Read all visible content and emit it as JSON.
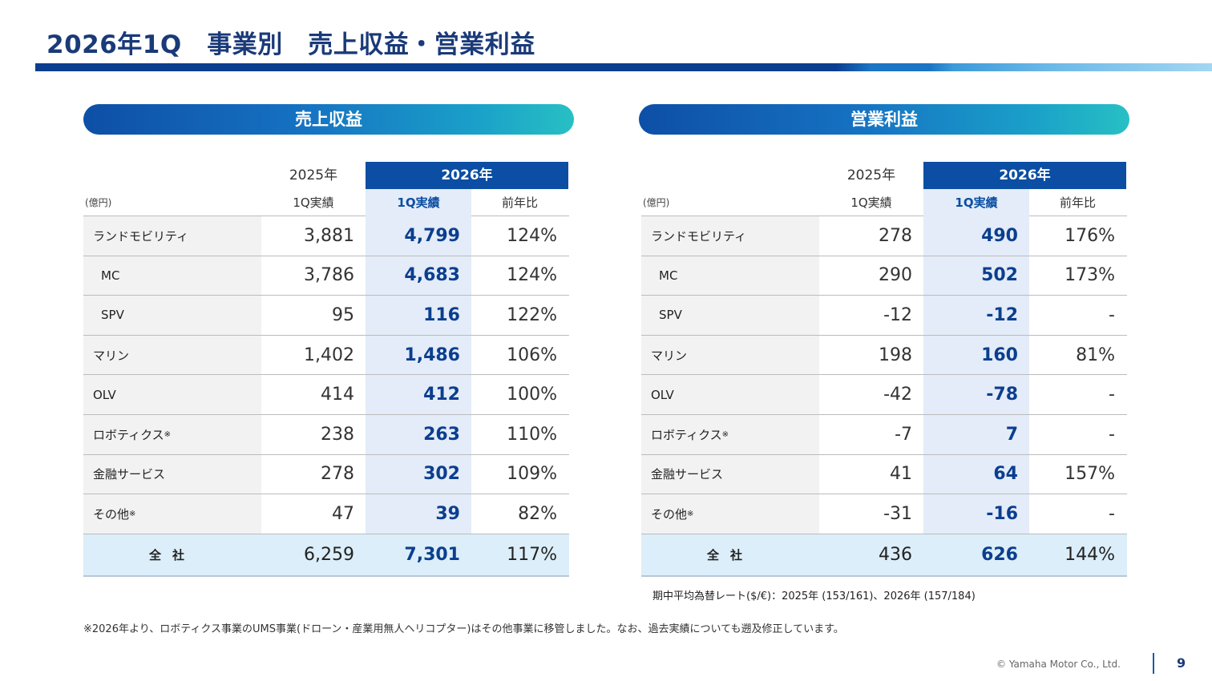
{
  "title": "2026年1Q　事業別　売上収益・営業利益",
  "colors": {
    "navy": "#0b3e8f",
    "header_blue": "#0b4ea3",
    "highlight_col": "#e3ecf8",
    "total_row": "#dbeef9"
  },
  "common": {
    "year_prev": "2025年",
    "year_cur": "2026年",
    "sub_prev": "1Q実績",
    "sub_cur": "1Q実績",
    "sub_ratio": "前年比",
    "unit": "(億円)"
  },
  "sales": {
    "heading": "売上収益",
    "rows": [
      {
        "label": "ランドモビリティ",
        "mark": "",
        "prev": "3,881",
        "cur": "4,799",
        "ratio": "124%"
      },
      {
        "label": "MC",
        "mark": "",
        "prev": "3,786",
        "cur": "4,683",
        "ratio": "124%"
      },
      {
        "label": "SPV",
        "mark": "",
        "prev": "95",
        "cur": "116",
        "ratio": "122%"
      },
      {
        "label": "マリン",
        "mark": "",
        "prev": "1,402",
        "cur": "1,486",
        "ratio": "106%"
      },
      {
        "label": "OLV",
        "mark": "",
        "prev": "414",
        "cur": "412",
        "ratio": "100%"
      },
      {
        "label": "ロボティクス",
        "mark": "※",
        "prev": "238",
        "cur": "263",
        "ratio": "110%"
      },
      {
        "label": "金融サービス",
        "mark": "",
        "prev": "278",
        "cur": "302",
        "ratio": "109%"
      },
      {
        "label": "その他",
        "mark": "※",
        "prev": "47",
        "cur": "39",
        "ratio": "82%"
      }
    ],
    "total": {
      "label": "全社",
      "prev": "6,259",
      "cur": "7,301",
      "ratio": "117%"
    }
  },
  "profit": {
    "heading": "営業利益",
    "rows": [
      {
        "label": "ランドモビリティ",
        "mark": "",
        "prev": "278",
        "cur": "490",
        "ratio": "176%"
      },
      {
        "label": "MC",
        "mark": "",
        "prev": "290",
        "cur": "502",
        "ratio": "173%"
      },
      {
        "label": "SPV",
        "mark": "",
        "prev": "-12",
        "cur": "-12",
        "ratio": "-"
      },
      {
        "label": "マリン",
        "mark": "",
        "prev": "198",
        "cur": "160",
        "ratio": "81%"
      },
      {
        "label": "OLV",
        "mark": "",
        "prev": "-42",
        "cur": "-78",
        "ratio": "-"
      },
      {
        "label": "ロボティクス",
        "mark": "※",
        "prev": "-7",
        "cur": "7",
        "ratio": "-"
      },
      {
        "label": "金融サービス",
        "mark": "",
        "prev": "41",
        "cur": "64",
        "ratio": "157%"
      },
      {
        "label": "その他",
        "mark": "※",
        "prev": "-31",
        "cur": "-16",
        "ratio": "-"
      }
    ],
    "total": {
      "label": "全社",
      "prev": "436",
      "cur": "626",
      "ratio": "144%"
    }
  },
  "fx_note": "期中平均為替レート($/€)：2025年 (153/161)、2026年 (157/184)",
  "footnote": "※2026年より、ロボティクス事業のUMS事業(ドローン・産業用無人ヘリコプター)はその他事業に移管しました。なお、過去実績についても遡及修正しています。",
  "copyright": "© Yamaha Motor Co., Ltd.",
  "page_number": "9"
}
